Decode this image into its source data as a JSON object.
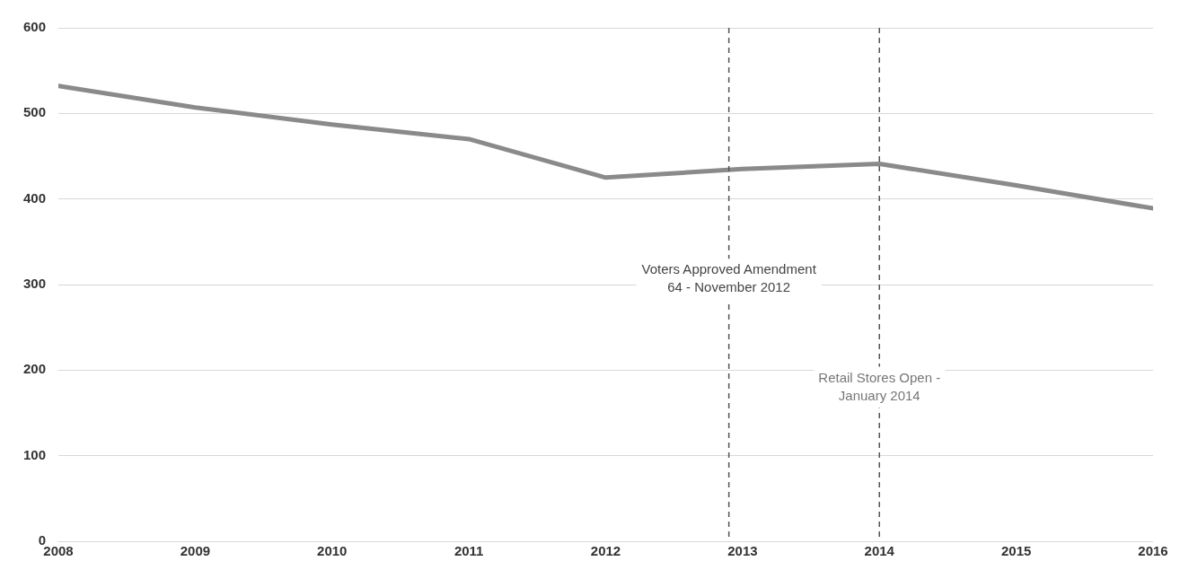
{
  "chart_data": {
    "type": "line",
    "x": [
      2008,
      2009,
      2010,
      2011,
      2012,
      2013,
      2014,
      2015,
      2016
    ],
    "series": [
      {
        "color": "#8a8a8a",
        "values": [
          532,
          507,
          487,
          470,
          425,
          435,
          441,
          416,
          389
        ]
      }
    ],
    "xlim": [
      2008,
      2016
    ],
    "xticks": [
      2008,
      2009,
      2010,
      2011,
      2012,
      2013,
      2014,
      2015,
      2016
    ],
    "ylim": [
      0,
      600
    ],
    "yticks": [
      0,
      100,
      200,
      300,
      400,
      500,
      600
    ],
    "grid": "y",
    "legend": false,
    "marker": "none",
    "line_style": "solid",
    "ref_lines": [
      {
        "axis": "x",
        "value": 2012.9,
        "label": "Voters Approved Amendment\n64 - November 2012",
        "color": "#555555",
        "line_style": "dashed"
      },
      {
        "axis": "x",
        "value": 2014,
        "label": "Retail Stores Open -\nJanuary 2014",
        "color": "#555555",
        "line_style": "dashed"
      }
    ]
  }
}
